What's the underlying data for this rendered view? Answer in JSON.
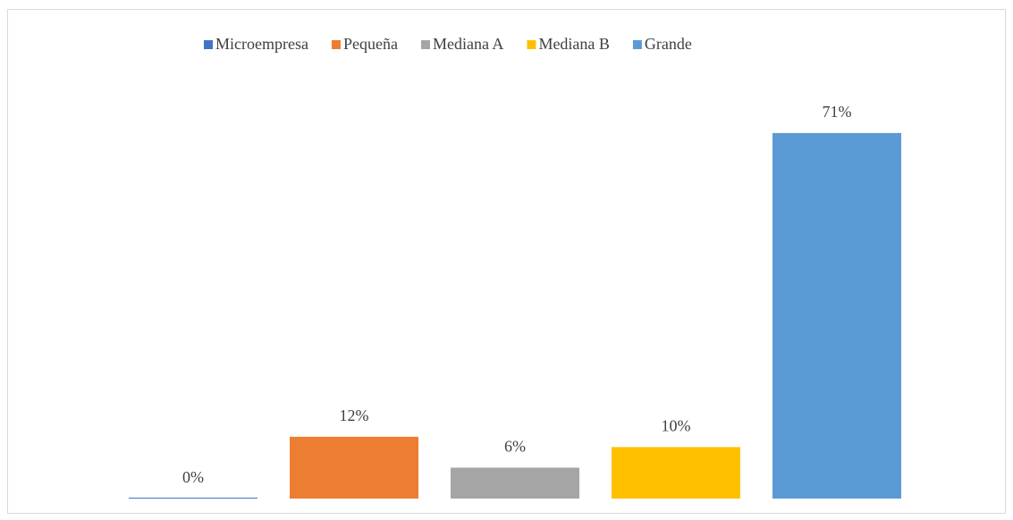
{
  "chart_data": {
    "type": "bar",
    "series": [
      {
        "name": "Microempresa",
        "color": "#4472c4",
        "values": [
          0
        ],
        "value_labels": [
          "0%"
        ]
      },
      {
        "name": "Pequeña",
        "color": "#ed7d31",
        "values": [
          12
        ],
        "value_labels": [
          "12%"
        ]
      },
      {
        "name": "Mediana A",
        "color": "#a5a5a5",
        "values": [
          6
        ],
        "value_labels": [
          "6%"
        ]
      },
      {
        "name": "Mediana B",
        "color": "#ffc000",
        "values": [
          10
        ],
        "value_labels": [
          "10%"
        ]
      },
      {
        "name": "Grande",
        "color": "#5b9bd5",
        "values": [
          71
        ],
        "value_labels": [
          "71%"
        ]
      }
    ],
    "ylim": [
      0,
      80
    ],
    "legend": "top"
  }
}
